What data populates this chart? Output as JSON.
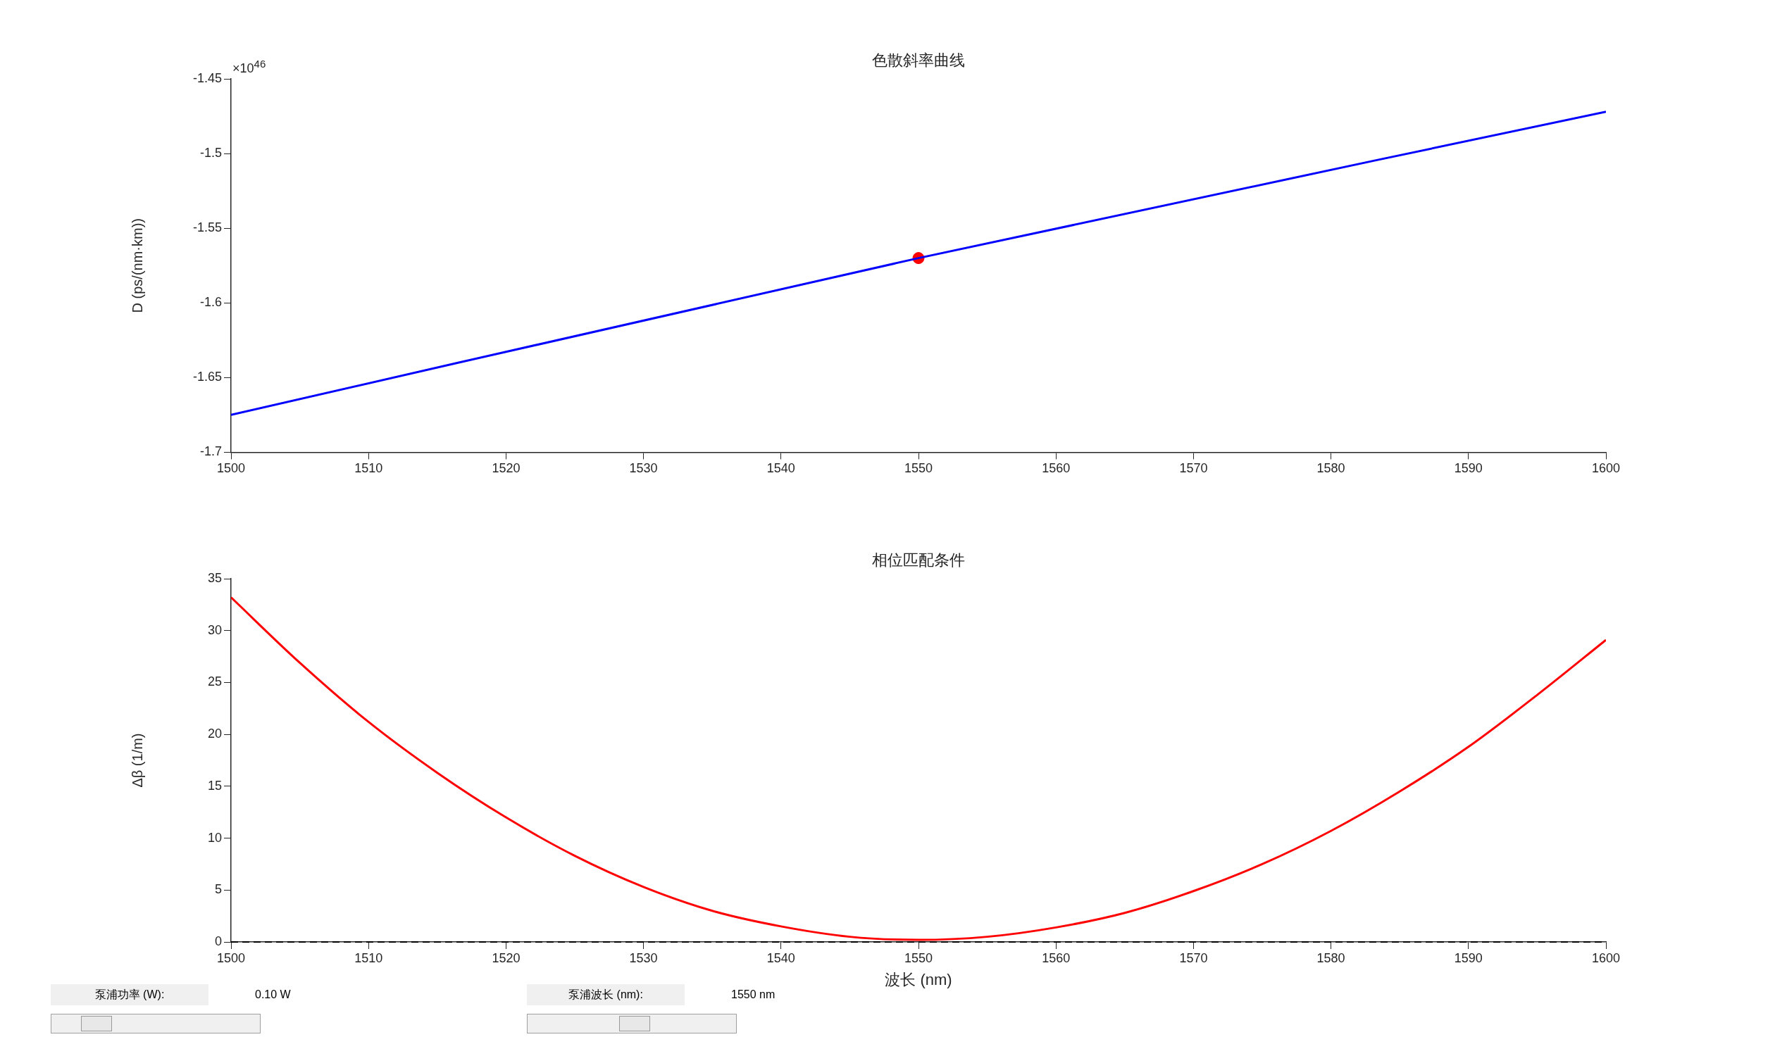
{
  "chart_data": [
    {
      "type": "line",
      "title": "色散斜率曲线",
      "ylabel": "D (ps/(nm·km))",
      "xlim": [
        1500,
        1600
      ],
      "xticks": [
        1500,
        1510,
        1520,
        1530,
        1540,
        1550,
        1560,
        1570,
        1580,
        1590,
        1600
      ],
      "ylim": [
        -1.7,
        -1.45
      ],
      "yticks": [
        -1.7,
        -1.65,
        -1.6,
        -1.55,
        -1.5,
        -1.45
      ],
      "grid": false,
      "legend": false,
      "marker": "none",
      "line_style": "solid",
      "annotations": [
        "×10$^{46}$"
      ],
      "series": [
        {
          "color": "#0000ff",
          "x": [
            1500,
            1550,
            1600
          ],
          "values": [
            -1.675,
            -1.57,
            -1.472
          ]
        },
        {
          "type": "scatter",
          "marker": "circle",
          "color": "#ff0000",
          "x": [
            1550
          ],
          "values": [
            -1.57
          ]
        }
      ]
    },
    {
      "type": "line",
      "title": "相位匹配条件",
      "xlabel": "波长 (nm)",
      "ylabel": "Δβ (1/m)",
      "xlim": [
        1500,
        1600
      ],
      "xticks": [
        1500,
        1510,
        1520,
        1530,
        1540,
        1550,
        1560,
        1570,
        1580,
        1590,
        1600
      ],
      "ylim": [
        0,
        35
      ],
      "yticks": [
        0,
        5,
        10,
        15,
        20,
        25,
        30,
        35
      ],
      "grid": false,
      "legend": false,
      "marker": "none",
      "line_style": "solid",
      "ref_lines": [
        {
          "axis": "y",
          "value": 0,
          "color": "#000000",
          "line_style": "dashed"
        }
      ],
      "annotations": [
        "泵浦功率 (W):",
        "0.10 W",
        "泵浦波长 (nm):",
        "1550 nm"
      ],
      "series": [
        {
          "color": "#ff0000",
          "x": [
            1500,
            1505,
            1510,
            1515,
            1520,
            1525,
            1530,
            1535,
            1540,
            1545,
            1550,
            1555,
            1560,
            1565,
            1570,
            1575,
            1580,
            1585,
            1590,
            1595,
            1600
          ],
          "values": [
            33.2,
            26.9,
            21.2,
            16.3,
            12.0,
            8.3,
            5.3,
            3.0,
            1.5,
            0.5,
            0.2,
            0.5,
            1.4,
            2.8,
            4.9,
            7.5,
            10.7,
            14.5,
            18.8,
            23.8,
            29.1
          ]
        }
      ]
    }
  ]
}
